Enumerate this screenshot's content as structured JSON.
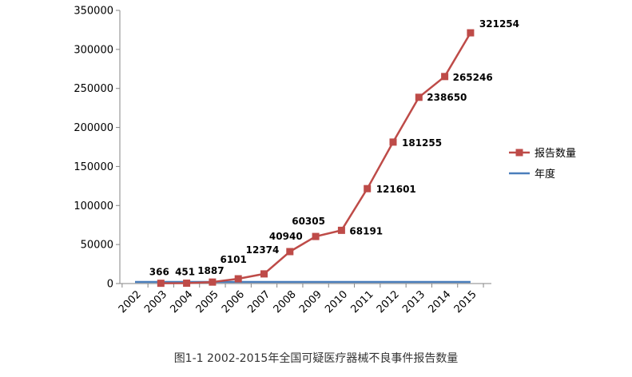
{
  "caption": "图1-1 2002-2015年全国可疑医疗器械不良事件报告数量",
  "chart_data": {
    "type": "line",
    "categories": [
      "2002",
      "2003",
      "2004",
      "2005",
      "2006",
      "2007",
      "2008",
      "2009",
      "2010",
      "2011",
      "2012",
      "2013",
      "2014",
      "2015"
    ],
    "series": [
      {
        "name": "报告数量",
        "color": "#be4b48",
        "marker": "square",
        "values": [
          null,
          366,
          451,
          1887,
          6101,
          12374,
          40940,
          60305,
          68191,
          121601,
          181255,
          238650,
          265246,
          321254
        ],
        "data_labels": [
          "",
          "366",
          "451",
          "1887",
          "6101",
          "12374",
          "40940",
          "60305",
          "68191",
          "121601",
          "181255",
          "238650",
          "265246",
          "321254"
        ]
      },
      {
        "name": "年度",
        "color": "#4a7ebb",
        "marker": "none",
        "values": [
          2002,
          2003,
          2004,
          2005,
          2006,
          2007,
          2008,
          2009,
          2010,
          2011,
          2012,
          2013,
          2014,
          2015
        ]
      }
    ],
    "y_ticks": [
      "0",
      "50000",
      "100000",
      "150000",
      "200000",
      "250000",
      "300000",
      "350000"
    ],
    "ylim": [
      0,
      350000
    ],
    "grid": false,
    "legend_position": "right"
  }
}
